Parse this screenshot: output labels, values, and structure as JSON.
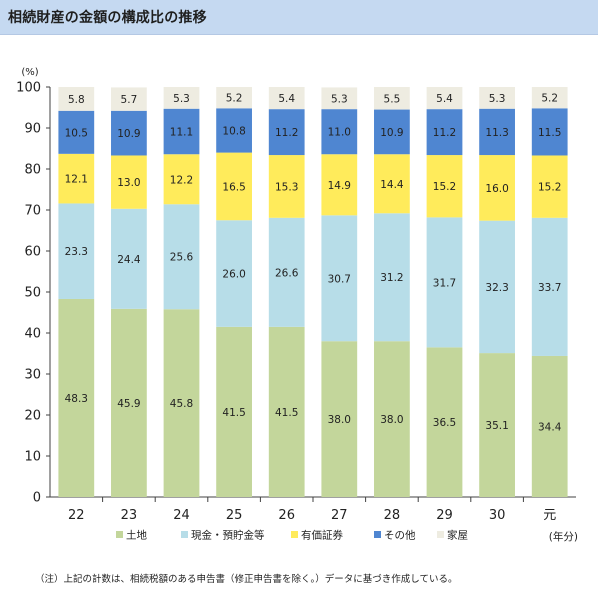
{
  "header": {
    "title": "相続財産の金額の構成比の推移"
  },
  "chart_data": {
    "type": "bar",
    "stacked": true,
    "categories": [
      "22",
      "23",
      "24",
      "25",
      "26",
      "27",
      "28",
      "29",
      "30",
      "元"
    ],
    "ylim": [
      0,
      100
    ],
    "yticks": [
      0,
      10,
      20,
      30,
      40,
      50,
      60,
      70,
      80,
      90,
      100
    ],
    "y_unit": "(%)",
    "x_unit": "(年分)",
    "grid": false,
    "legend_position": "bottom",
    "series": [
      {
        "name": "土地",
        "color": "#c3d69b",
        "values": [
          48.3,
          45.9,
          45.8,
          41.5,
          41.5,
          38.0,
          38.0,
          36.5,
          35.1,
          34.4
        ]
      },
      {
        "name": "現金・預貯金等",
        "color": "#b7dde8",
        "values": [
          23.3,
          24.4,
          25.6,
          26.0,
          26.6,
          30.7,
          31.2,
          31.7,
          32.3,
          33.7
        ]
      },
      {
        "name": "有価証券",
        "color": "#ffeb5b",
        "values": [
          12.1,
          13.0,
          12.2,
          16.5,
          15.3,
          14.9,
          14.4,
          15.2,
          16.0,
          15.2
        ]
      },
      {
        "name": "その他",
        "color": "#4f86d1",
        "values": [
          10.5,
          10.9,
          11.1,
          10.8,
          11.2,
          11.0,
          10.9,
          11.2,
          11.3,
          11.5
        ]
      },
      {
        "name": "家屋",
        "color": "#eeece1",
        "values": [
          5.8,
          5.7,
          5.3,
          5.2,
          5.4,
          5.3,
          5.5,
          5.4,
          5.3,
          5.2
        ]
      }
    ]
  },
  "note": "（注）上記の計数は、相続税額のある申告書（修正申告書を除く。）データに基づき作成している。"
}
